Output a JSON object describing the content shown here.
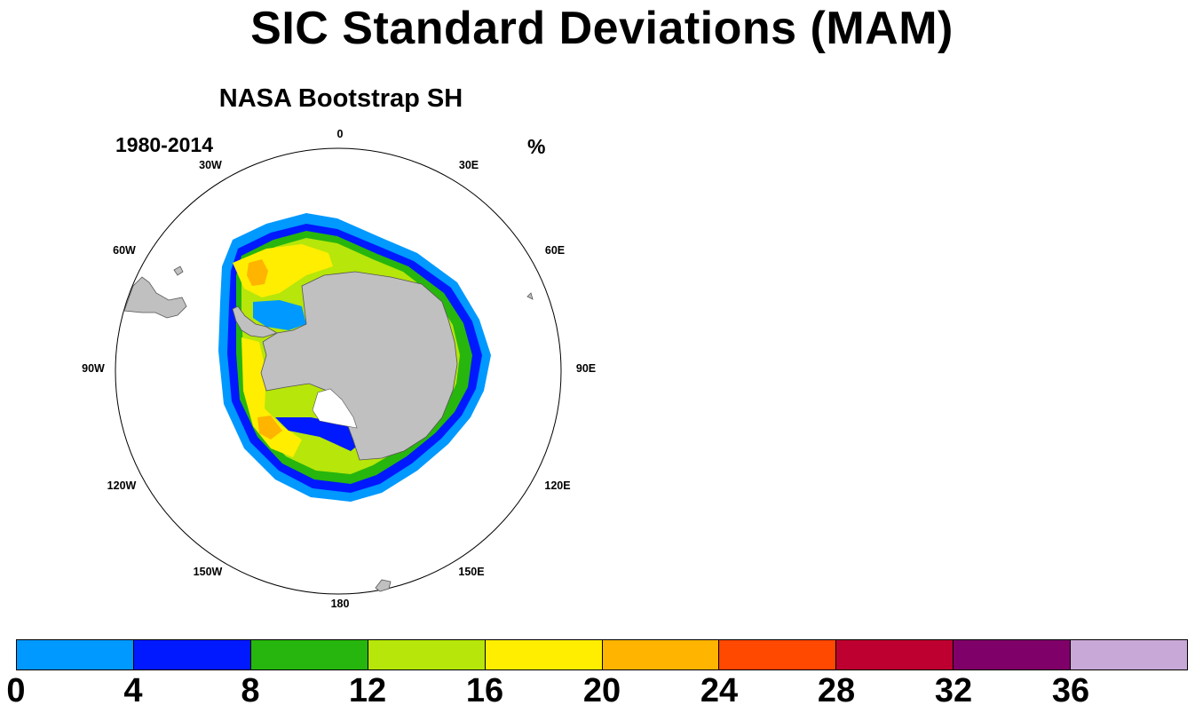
{
  "title": "SIC Standard Deviations (MAM)",
  "panel": {
    "title": "NASA Bootstrap SH",
    "left_label": "1980-2014",
    "right_label": "%",
    "lon_labels": [
      "0",
      "30E",
      "60E",
      "90E",
      "120E",
      "150E",
      "180",
      "150W",
      "120W",
      "90W",
      "60W",
      "30W"
    ]
  },
  "colorbar": {
    "colors": [
      "#0099ff",
      "#0019ff",
      "#27b60d",
      "#b6e60a",
      "#ffee00",
      "#ffb400",
      "#ff4800",
      "#bd0030",
      "#7f0068",
      "#c8a8d6"
    ],
    "labels": [
      "0",
      "4",
      "8",
      "12",
      "16",
      "20",
      "24",
      "28",
      "32",
      "36"
    ]
  },
  "land_color": "#c0c0c0"
}
